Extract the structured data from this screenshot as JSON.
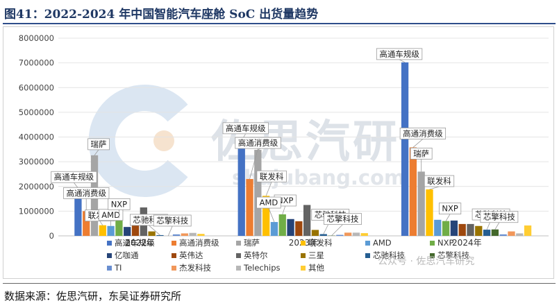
{
  "figure_title": "图41：2022-2024 年中国智能汽车座舱 SoC 出货量趋势",
  "source": "数据来源：佐思汽研，东吴证券研究所",
  "watermark": {
    "brand": "佐思汽研",
    "url": "shujubang.com",
    "wechat": "公众号 · 佐思汽车研究"
  },
  "chart_data": {
    "type": "bar",
    "categories": [
      "2022年",
      "2023年",
      "2024年"
    ],
    "ylim": [
      0,
      8000000
    ],
    "yticks": [
      "0",
      "1000000",
      "2000000",
      "3000000",
      "4000000",
      "5000000",
      "6000000",
      "7000000",
      "8000000"
    ],
    "grid": true,
    "legend_position": "bottom",
    "series": [
      {
        "name": "高通车规级",
        "color": "#4472c4",
        "values": [
          1930000,
          3850000,
          7020000
        ]
      },
      {
        "name": "高通消费级",
        "color": "#ed7d31",
        "values": [
          1000000,
          2300000,
          3580000
        ]
      },
      {
        "name": "瑞萨",
        "color": "#a5a5a5",
        "values": [
          3260000,
          3480000,
          2600000
        ]
      },
      {
        "name": "联发科",
        "color": "#ffc000",
        "values": [
          430000,
          1620000,
          1880000
        ]
      },
      {
        "name": "AMD",
        "color": "#5b9bd5",
        "values": [
          400000,
          560000,
          650000
        ]
      },
      {
        "name": "NXP",
        "color": "#70ad47",
        "values": [
          720000,
          870000,
          600000
        ]
      },
      {
        "name": "亿咖通",
        "color": "#264478",
        "values": [
          360000,
          680000,
          620000
        ]
      },
      {
        "name": "英伟达",
        "color": "#9e480e",
        "values": [
          700000,
          590000,
          480000
        ]
      },
      {
        "name": "英特尔",
        "color": "#636363",
        "values": [
          1150000,
          1250000,
          480000
        ]
      },
      {
        "name": "三星",
        "color": "#997300",
        "values": [
          180000,
          240000,
          400000
        ]
      },
      {
        "name": "芯驰科技",
        "color": "#255e91",
        "values": [
          30000,
          70000,
          250000
        ]
      },
      {
        "name": "芯擎科技",
        "color": "#43682b",
        "values": [
          0,
          10000,
          260000
        ]
      },
      {
        "name": "TI",
        "color": "#698ed0",
        "values": [
          60000,
          40000,
          60000
        ]
      },
      {
        "name": "杰发科技",
        "color": "#f1975a",
        "values": [
          100000,
          130000,
          180000
        ]
      },
      {
        "name": "Telechips",
        "color": "#b7b7b7",
        "values": [
          120000,
          130000,
          100000
        ]
      },
      {
        "name": "其他",
        "color": "#ffcd33",
        "values": [
          80000,
          110000,
          420000
        ]
      }
    ],
    "annotations": [
      {
        "text": "高通车规级",
        "series": 0,
        "category": 0
      },
      {
        "text": "高通消费级",
        "series": 1,
        "category": 0
      },
      {
        "text": "瑞萨",
        "series": 2,
        "category": 0
      },
      {
        "text": "联发科",
        "series": 3,
        "category": 0
      },
      {
        "text": "AMD",
        "series": 4,
        "category": 0
      },
      {
        "text": "NXP",
        "series": 5,
        "category": 0
      },
      {
        "text": "芯驰科技",
        "series": 10,
        "category": 0
      },
      {
        "text": "芯擎科技",
        "series": 11,
        "category": 0
      },
      {
        "text": "高通车规级",
        "series": 0,
        "category": 1
      },
      {
        "text": "瑞萨",
        "series": 2,
        "category": 1
      },
      {
        "text": "高通消费级",
        "series": 1,
        "category": 1
      },
      {
        "text": "联发科",
        "series": 3,
        "category": 1
      },
      {
        "text": "NXP",
        "series": 5,
        "category": 1
      },
      {
        "text": "AMD",
        "series": 4,
        "category": 1
      },
      {
        "text": "芯驰科技",
        "series": 10,
        "category": 1
      },
      {
        "text": "芯擎科技",
        "series": 11,
        "category": 1
      },
      {
        "text": "高通车规级",
        "series": 0,
        "category": 2
      },
      {
        "text": "高通消费级",
        "series": 1,
        "category": 2
      },
      {
        "text": "瑞萨",
        "series": 2,
        "category": 2
      },
      {
        "text": "联发科",
        "series": 3,
        "category": 2
      },
      {
        "text": "NXP",
        "series": 5,
        "category": 2
      },
      {
        "text": "芯驰科技",
        "series": 10,
        "category": 2
      },
      {
        "text": "芯擎科技",
        "series": 11,
        "category": 2
      }
    ]
  }
}
